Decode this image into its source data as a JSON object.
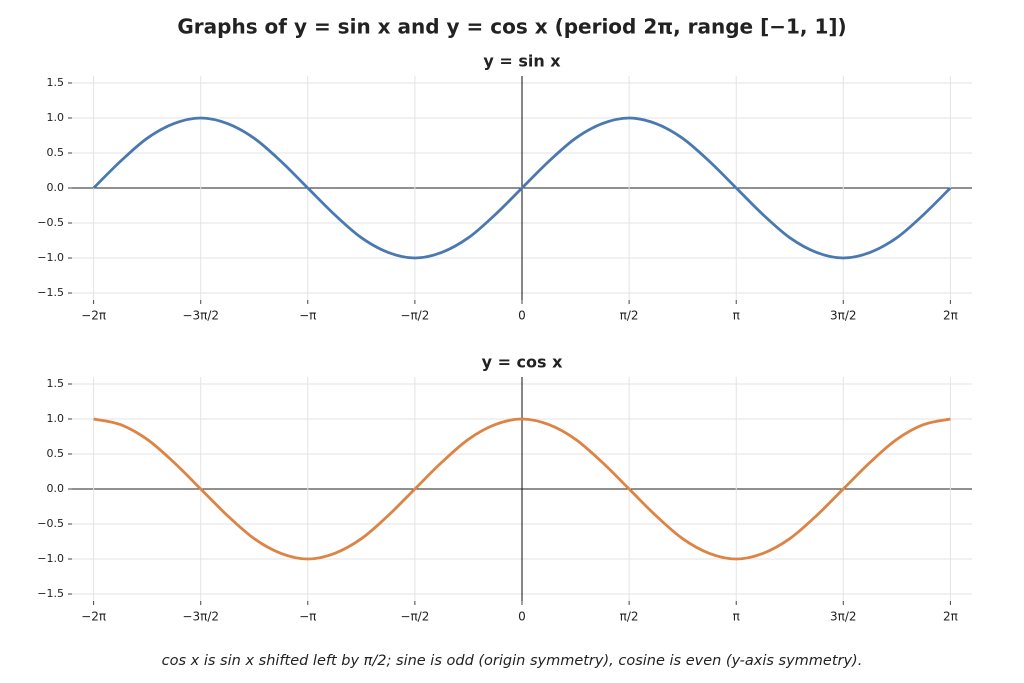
{
  "title": "Graphs of  y = sin x  and  y = cos x   (period 2π, range [−1, 1])",
  "caption": "cos x is sin x shifted left by π/2; sine is odd (origin symmetry), cosine is even (y-axis symmetry).",
  "chart_data": [
    {
      "type": "line",
      "title": "y = sin x",
      "color": "#4a78b0",
      "grid": true,
      "x": [
        -6.283,
        -5.89,
        -5.498,
        -5.105,
        -4.712,
        -4.32,
        -3.927,
        -3.534,
        -3.142,
        -2.749,
        -2.356,
        -1.963,
        -1.571,
        -1.178,
        -0.785,
        -0.393,
        0,
        0.393,
        0.785,
        1.178,
        1.571,
        1.963,
        2.356,
        2.749,
        3.142,
        3.534,
        3.927,
        4.32,
        4.712,
        5.105,
        5.498,
        5.89,
        6.283
      ],
      "values": [
        0,
        0.38,
        0.71,
        0.92,
        1,
        0.92,
        0.71,
        0.38,
        0,
        -0.38,
        -0.71,
        -0.92,
        -1,
        -0.92,
        -0.71,
        -0.38,
        0,
        0.38,
        0.71,
        0.92,
        1,
        0.92,
        0.71,
        0.38,
        0,
        -0.38,
        -0.71,
        -0.92,
        -1,
        -0.92,
        -0.71,
        -0.38,
        0
      ],
      "xlim": [
        -6.6,
        6.6
      ],
      "ylim": [
        -1.6,
        1.6
      ],
      "xticks": [
        {
          "value": -6.283,
          "label": "−2π"
        },
        {
          "value": -4.712,
          "label": "−3π/2"
        },
        {
          "value": -3.142,
          "label": "−π"
        },
        {
          "value": -1.571,
          "label": "−π/2"
        },
        0,
        {
          "value": 1.571,
          "label": "π/2"
        },
        {
          "value": 3.142,
          "label": "π"
        },
        {
          "value": 4.712,
          "label": "3π/2"
        },
        {
          "value": 6.283,
          "label": "2π"
        }
      ],
      "yticks": [
        {
          "value": -1.5,
          "label": "−1.5"
        },
        {
          "value": -1,
          "label": "−1.0"
        },
        {
          "value": -0.5,
          "label": "−0.5"
        },
        {
          "value": 0,
          "label": "0.0"
        },
        0.5,
        {
          "value": 1,
          "label": "1.0"
        },
        1.5
      ]
    },
    {
      "type": "line",
      "title": "y = cos x",
      "color": "#dd8344",
      "grid": true,
      "x": [
        -6.283,
        -5.89,
        -5.498,
        -5.105,
        -4.712,
        -4.32,
        -3.927,
        -3.534,
        -3.142,
        -2.749,
        -2.356,
        -1.963,
        -1.571,
        -1.178,
        -0.785,
        -0.393,
        0,
        0.393,
        0.785,
        1.178,
        1.571,
        1.963,
        2.356,
        2.749,
        3.142,
        3.534,
        3.927,
        4.32,
        4.712,
        5.105,
        5.498,
        5.89,
        6.283
      ],
      "values": [
        1,
        0.92,
        0.71,
        0.38,
        0,
        -0.38,
        -0.71,
        -0.92,
        -1,
        -0.92,
        -0.71,
        -0.38,
        0,
        0.38,
        0.71,
        0.92,
        1,
        0.92,
        0.71,
        0.38,
        0,
        -0.38,
        -0.71,
        -0.92,
        -1,
        -0.92,
        -0.71,
        -0.38,
        0,
        0.38,
        0.71,
        0.92,
        1
      ],
      "xlim": [
        -6.6,
        6.6
      ],
      "ylim": [
        -1.6,
        1.6
      ],
      "xticks": [
        {
          "value": -6.283,
          "label": "−2π"
        },
        {
          "value": -4.712,
          "label": "−3π/2"
        },
        {
          "value": -3.142,
          "label": "−π"
        },
        {
          "value": -1.571,
          "label": "−π/2"
        },
        0,
        {
          "value": 1.571,
          "label": "π/2"
        },
        {
          "value": 3.142,
          "label": "π"
        },
        {
          "value": 4.712,
          "label": "3π/2"
        },
        {
          "value": 6.283,
          "label": "2π"
        }
      ],
      "yticks": [
        {
          "value": -1.5,
          "label": "−1.5"
        },
        {
          "value": -1,
          "label": "−1.0"
        },
        {
          "value": -0.5,
          "label": "−0.5"
        },
        {
          "value": 0,
          "label": "0.0"
        },
        0.5,
        {
          "value": 1,
          "label": "1.0"
        },
        1.5
      ]
    }
  ]
}
